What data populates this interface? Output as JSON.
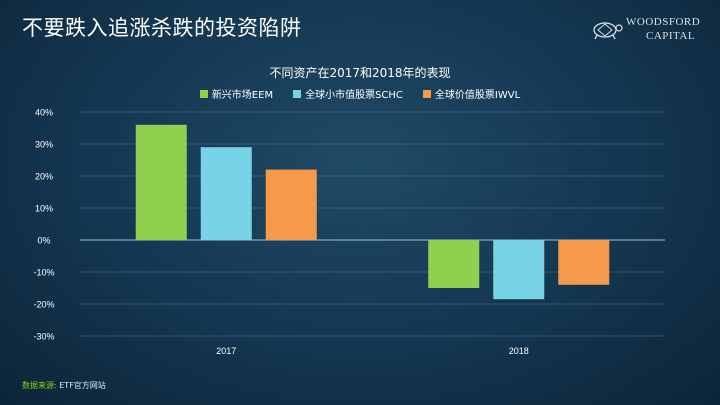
{
  "slide_title": "不要跌入追涨杀跌的投资陷阱",
  "logo": {
    "line1": "WOODSFORD",
    "line2": "CAPITAL"
  },
  "footer": {
    "label": "数据来源:",
    "text": "ETF官方网站"
  },
  "chart_data": {
    "type": "bar",
    "title": "不同资产在2017和2018年的表现",
    "categories": [
      "2017",
      "2018"
    ],
    "series": [
      {
        "name": "新兴市场EEM",
        "values": [
          36,
          -15
        ],
        "color": "#8fd14f"
      },
      {
        "name": "全球小市值股票SCHC",
        "values": [
          29,
          -18.5
        ],
        "color": "#79d3e6"
      },
      {
        "name": "全球价值股票IWVL",
        "values": [
          22,
          -14
        ],
        "color": "#f7994a"
      }
    ],
    "ylim": [
      -30,
      40
    ],
    "yticks": [
      "40%",
      "30%",
      "20%",
      "10%",
      "0%",
      "-10%",
      "-20%",
      "-30%"
    ],
    "xlabel": "",
    "ylabel": "",
    "grid": true,
    "legend": "top-center"
  }
}
